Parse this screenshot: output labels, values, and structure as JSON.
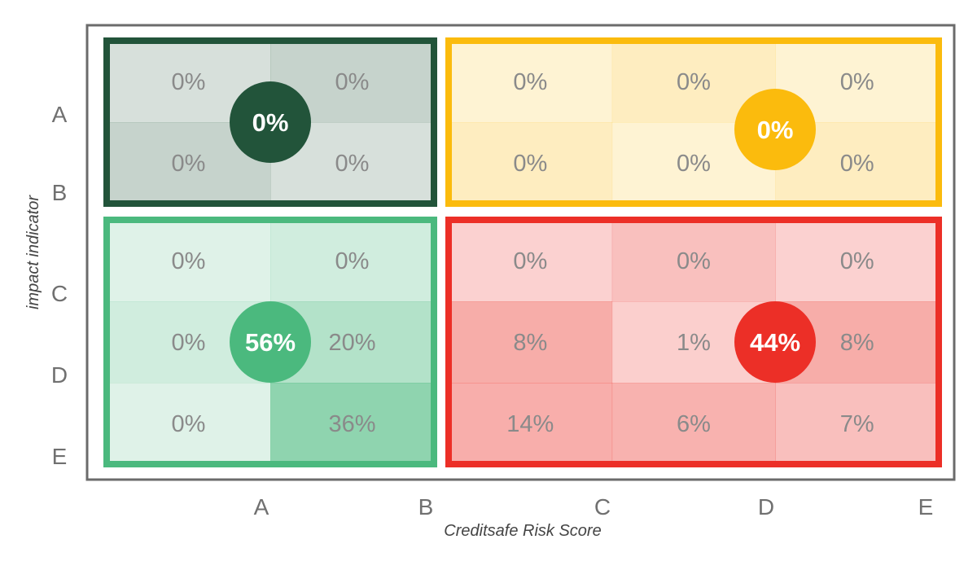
{
  "chart_data": {
    "type": "heatmap",
    "title": "",
    "xlabel": "Creditsafe Risk Score",
    "ylabel": "impact indicator",
    "x_ticks": [
      "A",
      "B",
      "C",
      "D",
      "E"
    ],
    "y_ticks": [
      "A",
      "B",
      "C",
      "D",
      "E"
    ],
    "quadrants": [
      {
        "id": "top-left",
        "color": "#22543a",
        "summary": "0%",
        "cells": [
          [
            "0%",
            "0%"
          ],
          [
            "0%",
            "0%"
          ]
        ]
      },
      {
        "id": "top-right",
        "color": "#fbbb0d",
        "summary": "0%",
        "cells": [
          [
            "0%",
            "0%",
            "0%"
          ],
          [
            "0%",
            "0%",
            "0%"
          ]
        ]
      },
      {
        "id": "bottom-left",
        "color": "#4bb97e",
        "summary": "56%",
        "cells": [
          [
            "0%",
            "0%"
          ],
          [
            "0%",
            "20%"
          ],
          [
            "0%",
            "36%"
          ]
        ]
      },
      {
        "id": "bottom-right",
        "color": "#ec2f27",
        "summary": "44%",
        "cells": [
          [
            "0%",
            "0%",
            "0%"
          ],
          [
            "8%",
            "1%",
            "8%"
          ],
          [
            "14%",
            "6%",
            "7%"
          ]
        ]
      }
    ]
  }
}
